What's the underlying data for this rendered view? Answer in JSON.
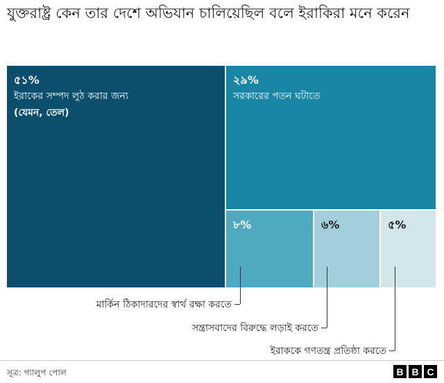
{
  "title": "যুক্তরাষ্ট্র কেন তার দেশে অভিযান চালিয়েছিল বলে ইরাকিরা মনে করেন",
  "chart_data": {
    "type": "treemap",
    "title": "যুক্তরাষ্ট্র কেন তার দেশে অভিযান চালিয়েছিল বলে ইরাকিরা মনে করেন",
    "items": [
      {
        "value_label": "৫১%",
        "value": 51,
        "label": "ইরাকের সম্পদ লুঠ করার জন্য",
        "label2": "(যেমন, তেল)",
        "color": "#0b4f6c"
      },
      {
        "value_label": "২৯%",
        "value": 29,
        "label": "সরকারের পতন ঘটাতে",
        "color": "#1a86a6"
      },
      {
        "value_label": "৮%",
        "value": 8,
        "label": "মার্কিন ঠিকাদারদের স্বার্থ রক্ষা করতে",
        "color": "#4fa9bf"
      },
      {
        "value_label": "৬%",
        "value": 6,
        "label": "সন্ত্রাসবাদের বিরুদ্ধে লড়াই করতে",
        "color": "#a3cedb"
      },
      {
        "value_label": "৫%",
        "value": 5,
        "label": "ইরাককে গণতন্ত্র প্রতিষ্ঠা করতে",
        "color": "#d2e6ec"
      }
    ]
  },
  "footer": {
    "source": "সূত্র: গ্যালুপ পোল",
    "logo_letters": [
      "B",
      "B",
      "C"
    ]
  }
}
